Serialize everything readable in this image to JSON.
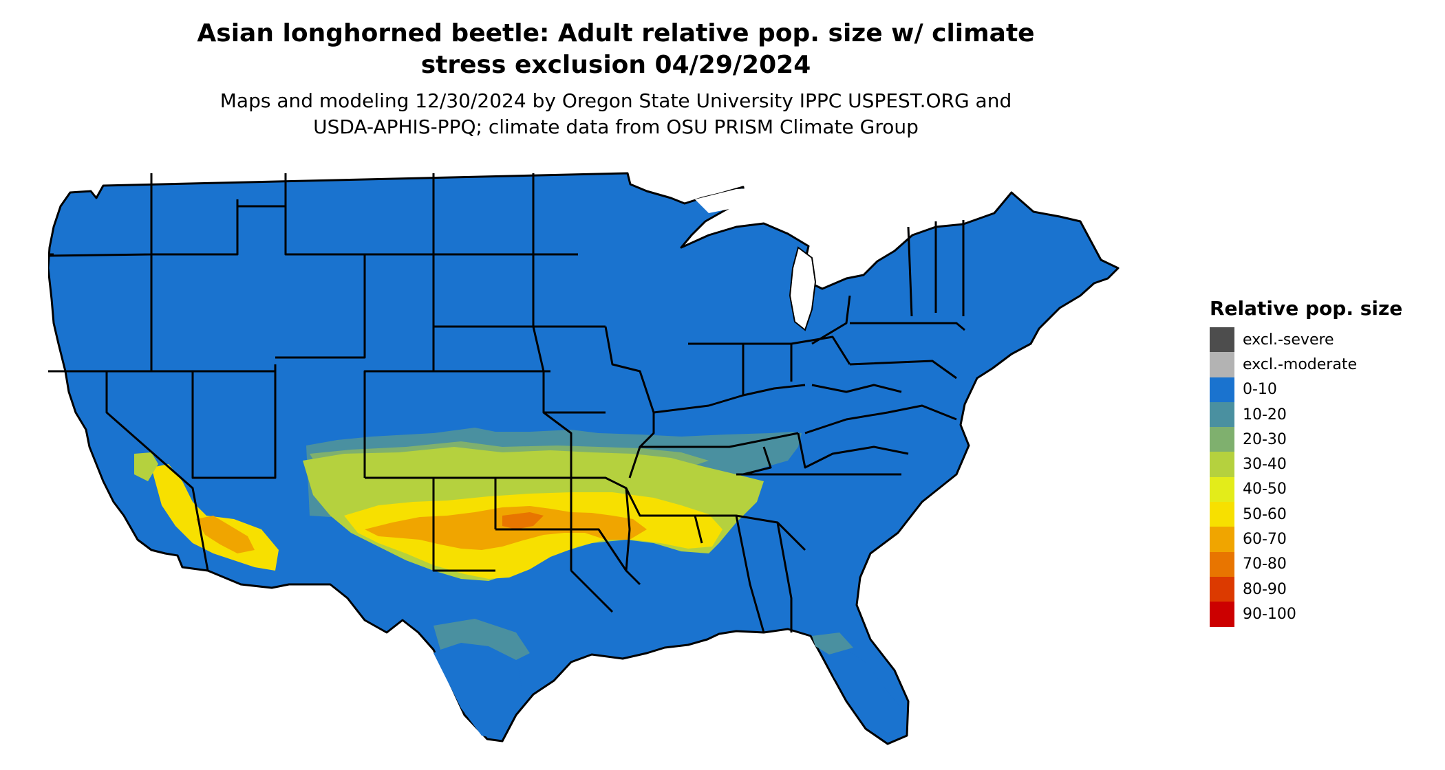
{
  "title_line1": "Asian longhorned beetle: Adult relative pop. size w/ climate",
  "title_line2": "stress exclusion 04/29/2024",
  "subtitle_line1": "Maps and modeling 12/30/2024 by Oregon State University IPPC USPEST.ORG and",
  "subtitle_line2": "USDA-APHIS-PPQ; climate data from OSU PRISM Climate Group",
  "map": {
    "region": "Contiguous United States",
    "base_fill": "#1a73cf",
    "border_color": "#000000"
  },
  "legend": {
    "title": "Relative pop. size",
    "items": [
      {
        "label": "excl.-severe",
        "color": "#4d4d4d"
      },
      {
        "label": "excl.-moderate",
        "color": "#b3b3b3"
      },
      {
        "label": "0-10",
        "color": "#1a73cf"
      },
      {
        "label": "10-20",
        "color": "#4a90a0"
      },
      {
        "label": "20-30",
        "color": "#7fb06e"
      },
      {
        "label": "30-40",
        "color": "#b5d13e"
      },
      {
        "label": "40-50",
        "color": "#e3ec1a"
      },
      {
        "label": "50-60",
        "color": "#f7e000"
      },
      {
        "label": "60-70",
        "color": "#f0a500"
      },
      {
        "label": "70-80",
        "color": "#e87500"
      },
      {
        "label": "80-90",
        "color": "#dc3a00"
      },
      {
        "label": "90-100",
        "color": "#cc0000"
      }
    ]
  }
}
